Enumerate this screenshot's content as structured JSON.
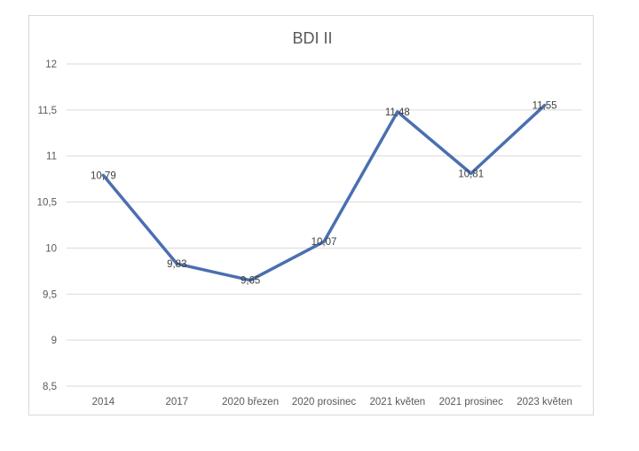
{
  "chart_data": {
    "type": "line",
    "title": "BDI II",
    "xlabel": "",
    "ylabel": "",
    "categories": [
      "2014",
      "2017",
      "2020 březen",
      "2020 prosinec",
      "2021 květen",
      "2021 prosinec",
      "2023 květen"
    ],
    "series": [
      {
        "values": [
          10.79,
          9.83,
          9.65,
          10.07,
          11.48,
          10.81,
          11.55
        ],
        "value_labels": [
          "10,79",
          "9,83",
          "9,65",
          "10,07",
          "11,48",
          "10,81",
          "11,55"
        ],
        "color": "#4a6fb1"
      }
    ],
    "y_ticks": [
      "8,5",
      "9",
      "9,5",
      "10",
      "10,5",
      "11",
      "11,5",
      "12"
    ],
    "ylim": [
      8.5,
      12
    ],
    "grid": true,
    "legend": "none"
  }
}
